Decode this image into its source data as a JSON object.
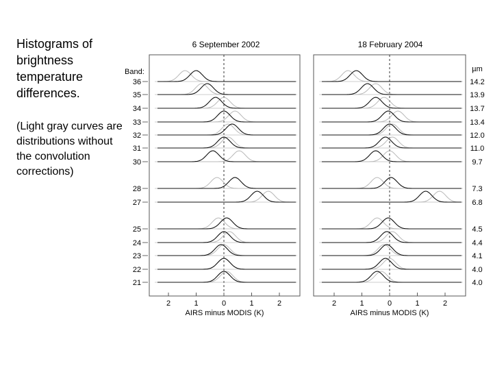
{
  "caption": {
    "title": "Histograms of brightness temperature differences.",
    "note": "(Light gray curves are distributions without the convolution corrections)"
  },
  "panel_titles": [
    "6 September 2002",
    "18 February 2004"
  ],
  "colors": {
    "corrected": "#111111",
    "uncorrected": "#b8b8b8",
    "frame": "#555555",
    "zero_line": "#333333"
  },
  "chart_data": {
    "type": "line",
    "xlabel": "AIRS minus MODIS (K)",
    "xlim": [
      -2,
      2
    ],
    "xticks": [
      "2",
      "1",
      "0",
      "1",
      "2"
    ],
    "band_header": "Band:",
    "wavelength_header": "µm",
    "bands": [
      {
        "band": "36",
        "wavelength": "14.2"
      },
      {
        "band": "35",
        "wavelength": "13.9"
      },
      {
        "band": "34",
        "wavelength": "13.7"
      },
      {
        "band": "33",
        "wavelength": "13.4"
      },
      {
        "band": "32",
        "wavelength": "12.0"
      },
      {
        "band": "31",
        "wavelength": "11.0"
      },
      {
        "band": "30",
        "wavelength": "9.7"
      },
      {
        "band": "28",
        "wavelength": "7.3"
      },
      {
        "band": "27",
        "wavelength": "6.8"
      },
      {
        "band": "25",
        "wavelength": "4.5"
      },
      {
        "band": "24",
        "wavelength": "4.4"
      },
      {
        "band": "23",
        "wavelength": "4.1"
      },
      {
        "band": "22",
        "wavelength": "4.0"
      },
      {
        "band": "21",
        "wavelength": "4.0"
      }
    ],
    "panels": [
      {
        "title": "6 September 2002",
        "peaks": [
          {
            "band": "36",
            "dark": -1.0,
            "light": -1.4
          },
          {
            "band": "35",
            "dark": -0.6,
            "light": -0.8
          },
          {
            "band": "34",
            "dark": -0.3,
            "light": 0.0
          },
          {
            "band": "33",
            "dark": 0.0,
            "light": 0.4
          },
          {
            "band": "32",
            "dark": 0.3,
            "light": 0.15
          },
          {
            "band": "31",
            "dark": 0.0,
            "light": 0.15
          },
          {
            "band": "30",
            "dark": -0.4,
            "light": 0.55
          },
          {
            "band": "28",
            "dark": 0.4,
            "light": -0.25
          },
          {
            "band": "27",
            "dark": 1.2,
            "light": 1.6
          },
          {
            "band": "25",
            "dark": 0.1,
            "light": -0.2
          },
          {
            "band": "24",
            "dark": 0.0,
            "light": 0.2
          },
          {
            "band": "23",
            "dark": -0.1,
            "light": 0.0
          },
          {
            "band": "22",
            "dark": 0.0,
            "light": 0.0
          },
          {
            "band": "21",
            "dark": 0.0,
            "light": 0.1
          }
        ]
      },
      {
        "title": "18 February 2004",
        "peaks": [
          {
            "band": "36",
            "dark": -1.2,
            "light": -1.5
          },
          {
            "band": "35",
            "dark": -0.8,
            "light": -0.5
          },
          {
            "band": "34",
            "dark": -0.5,
            "light": -0.2
          },
          {
            "band": "33",
            "dark": -0.05,
            "light": 0.3
          },
          {
            "band": "32",
            "dark": 0.0,
            "light": 0.1
          },
          {
            "band": "31",
            "dark": -0.15,
            "light": 0.1
          },
          {
            "band": "30",
            "dark": -0.5,
            "light": 0.0
          },
          {
            "band": "28",
            "dark": 0.05,
            "light": -0.45
          },
          {
            "band": "27",
            "dark": 1.3,
            "light": 1.8
          },
          {
            "band": "25",
            "dark": -0.05,
            "light": -0.45
          },
          {
            "band": "24",
            "dark": -0.1,
            "light": 0.1
          },
          {
            "band": "23",
            "dark": -0.1,
            "light": -0.2
          },
          {
            "band": "22",
            "dark": -0.15,
            "light": 0.0
          },
          {
            "band": "21",
            "dark": -0.45,
            "light": -0.3
          }
        ]
      }
    ]
  }
}
